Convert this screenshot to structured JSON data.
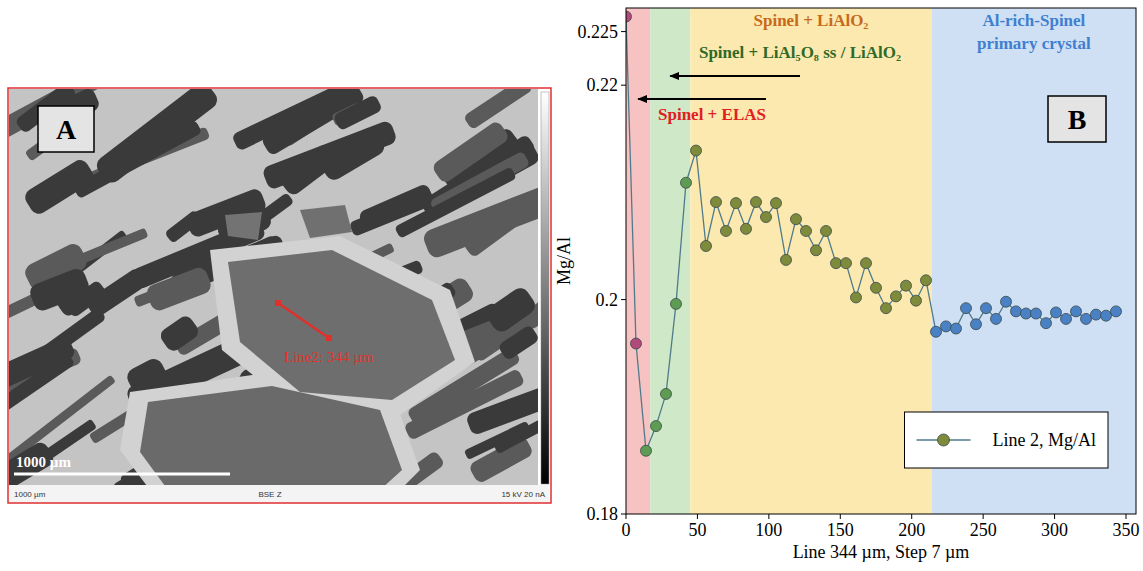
{
  "chart_data": {
    "type": "line",
    "panel_label": "B",
    "x_label": "Line 344 µm, Step 7 µm",
    "y_label": "Mg/Al",
    "x": [
      0,
      7,
      14,
      21,
      28,
      35,
      42,
      49,
      56,
      63,
      70,
      77,
      84,
      91,
      98,
      105,
      112,
      119,
      126,
      133,
      140,
      147,
      154,
      161,
      168,
      175,
      182,
      189,
      196,
      203,
      210,
      217,
      224,
      231,
      238,
      245,
      252,
      259,
      266,
      273,
      280,
      287,
      294,
      301,
      308,
      315,
      322,
      329,
      336,
      343
    ],
    "series": [
      {
        "name": "Line 2, Mg/Al",
        "color": "#4f7b8a",
        "marker": "circle",
        "values": [
          0.2264,
          0.1959,
          0.1859,
          0.1882,
          0.1912,
          0.1996,
          0.2109,
          0.2139,
          0.205,
          0.2091,
          0.2064,
          0.209,
          0.2066,
          0.2091,
          0.2077,
          0.209,
          0.2037,
          0.2075,
          0.2064,
          0.2046,
          0.2064,
          0.2034,
          0.2034,
          0.2002,
          0.2034,
          0.2011,
          0.1992,
          0.2003,
          0.2013,
          0.1999,
          0.2018,
          0.197,
          0.1975,
          0.1973,
          0.1992,
          0.1977,
          0.1992,
          0.1982,
          0.1998,
          0.1989,
          0.1987,
          0.1987,
          0.1978,
          0.1988,
          0.1982,
          0.1989,
          0.1982,
          0.1986,
          0.1985,
          0.1989
        ],
        "colors": [
          "#b04a7a",
          "#b04a7a",
          "#5d9c52",
          "#5d9c52",
          "#5d9c52",
          "#5d9c52",
          "#5d9c52",
          "#7e8b3a",
          "#7e8b3a",
          "#7e8b3a",
          "#7e8b3a",
          "#7e8b3a",
          "#7e8b3a",
          "#7e8b3a",
          "#7e8b3a",
          "#7e8b3a",
          "#7e8b3a",
          "#7e8b3a",
          "#7e8b3a",
          "#7e8b3a",
          "#7e8b3a",
          "#7e8b3a",
          "#7e8b3a",
          "#7e8b3a",
          "#7e8b3a",
          "#7e8b3a",
          "#7e8b3a",
          "#7e8b3a",
          "#7e8b3a",
          "#7e8b3a",
          "#7e8b3a",
          "#4a80c4",
          "#4a80c4",
          "#4a80c4",
          "#4a80c4",
          "#4a80c4",
          "#4a80c4",
          "#4a80c4",
          "#4a80c4",
          "#4a80c4",
          "#4a80c4",
          "#4a80c4",
          "#4a80c4",
          "#4a80c4",
          "#4a80c4",
          "#4a80c4",
          "#4a80c4",
          "#4a80c4",
          "#4a80c4",
          "#4a80c4"
        ]
      }
    ],
    "xlim": [
      0,
      357
    ],
    "ylim": [
      0.18,
      0.2272
    ],
    "xticks": [
      0,
      50,
      100,
      150,
      200,
      250,
      300,
      350
    ],
    "yticks": [
      0.18,
      0.2,
      0.22,
      0.225
    ],
    "legend": "lower right",
    "regions": [
      {
        "label": "Spinel + ELAS",
        "start": 0,
        "end": 17,
        "color": "#f6c2c2"
      },
      {
        "label": "Spinel + LiAl₅O₈ ss / LiAlO₂",
        "start": 17,
        "end": 45,
        "color": "#cfe8c8"
      },
      {
        "label": "Spinel + LiAlO₂",
        "start": 45,
        "end": 214,
        "color": "#fbe9b0"
      },
      {
        "label": "Al-rich-Spinel primary crystal",
        "start": 214,
        "end": 357,
        "color": "#cfe0f4"
      }
    ]
  },
  "image_panel": {
    "letter": "A",
    "line_label": "Line2: 344 µm",
    "scale_bar": "1000 µm",
    "footer": [
      "1000 µm",
      "BSE Z",
      "15 kV 20 nA"
    ]
  }
}
